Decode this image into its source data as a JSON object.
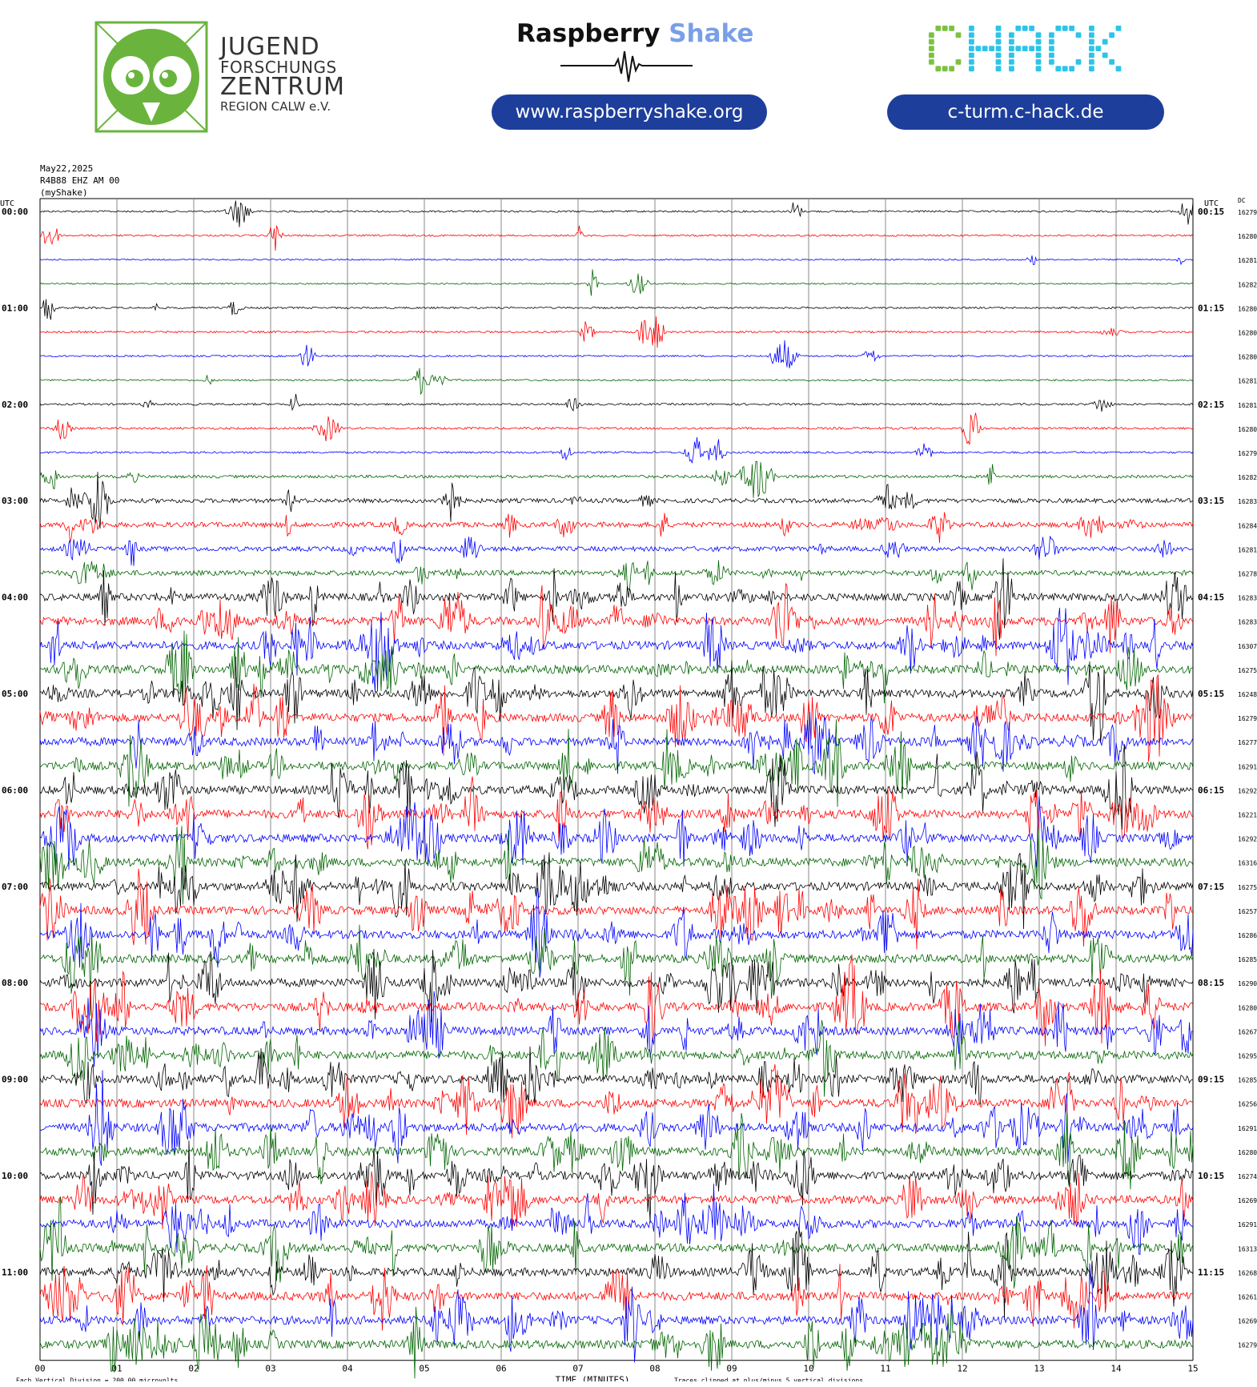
{
  "header": {
    "jfz_lines": [
      "JUGEND",
      "FORSCHUNGS",
      "ZENTRUM",
      "REGION CALW e.V."
    ],
    "rs_title_part1": "Raspberry",
    "rs_title_part2": "Shake",
    "rs_url": "www.raspberryshake.org",
    "chack_logo_text": "CHACK",
    "chack_url": "c-turm.c-hack.de"
  },
  "meta": {
    "date": "May22,2025",
    "station": "R4B88 EHZ AM 00",
    "source": "(myShake)"
  },
  "chart_data": {
    "type": "line",
    "title": "",
    "xlabel": "TIME (MINUTES)",
    "left_axis_label": "UTC",
    "right_axis_label": "UTC",
    "dc_label": "DC",
    "xlim": [
      0,
      15
    ],
    "x_ticks": [
      "00",
      "01",
      "02",
      "03",
      "04",
      "05",
      "06",
      "07",
      "08",
      "09",
      "10",
      "11",
      "12",
      "13",
      "14",
      "15"
    ],
    "left_hour_labels": [
      "00:00",
      "01:00",
      "02:00",
      "03:00",
      "04:00",
      "05:00",
      "06:00",
      "07:00",
      "08:00",
      "09:00",
      "10:00",
      "11:00"
    ],
    "right_hour_labels": [
      "00:15",
      "01:15",
      "02:15",
      "03:15",
      "04:15",
      "05:15",
      "06:15",
      "07:15",
      "08:15",
      "09:15",
      "10:15",
      "11:15"
    ],
    "trace_colors": [
      "#000000",
      "#ff0000",
      "#0000ff",
      "#006400"
    ],
    "dc_values": [
      16279,
      16280,
      16281,
      16282,
      16280,
      16280,
      16280,
      16281,
      16281,
      16280,
      16279,
      16282,
      16283,
      16284,
      16281,
      16278,
      16283,
      16283,
      16307,
      16275,
      16248,
      16279,
      16277,
      16291,
      16292,
      16221,
      16292,
      16316,
      16275,
      16257,
      16286,
      16285,
      16290,
      16280,
      16267,
      16295,
      16285,
      16256,
      16291,
      16280,
      16274,
      16269,
      16291,
      16313,
      16268,
      16261,
      16269,
      16279
    ],
    "activity_levels": [
      0.1,
      0.1,
      0.05,
      0.05,
      0.1,
      0.12,
      0.08,
      0.08,
      0.12,
      0.15,
      0.12,
      0.25,
      0.45,
      0.55,
      0.5,
      0.55,
      0.9,
      1.0,
      1.0,
      1.0,
      1.0,
      1.0,
      1.0,
      1.0,
      1.0,
      1.0,
      1.0,
      1.0,
      1.0,
      1.0,
      1.0,
      1.0,
      1.0,
      1.0,
      1.0,
      1.0,
      1.0,
      1.0,
      1.0,
      1.0,
      1.0,
      1.0,
      1.0,
      1.0,
      1.0,
      1.0,
      1.0,
      1.0
    ],
    "footer_left": "Each Vertical Division =  200.00 microvolts",
    "footer_right": "Traces clipped at plus/minus 5 vertical divisions"
  },
  "colors": {
    "pill": "#1d3e9b",
    "jfz_green": "#6ab43e",
    "chack_green": "#7cc242",
    "chack_cyan": "#2ec4e8"
  }
}
